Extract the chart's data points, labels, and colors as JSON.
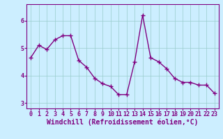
{
  "x": [
    0,
    1,
    2,
    3,
    4,
    5,
    6,
    7,
    8,
    9,
    10,
    11,
    12,
    13,
    14,
    15,
    16,
    17,
    18,
    19,
    20,
    21,
    22,
    23
  ],
  "y": [
    4.65,
    5.1,
    4.95,
    5.3,
    5.45,
    5.45,
    4.55,
    4.3,
    3.9,
    3.7,
    3.6,
    3.3,
    3.3,
    4.5,
    6.2,
    4.65,
    4.5,
    4.25,
    3.9,
    3.75,
    3.75,
    3.65,
    3.65,
    3.35
  ],
  "line_color": "#800080",
  "marker": "+",
  "marker_size": 4,
  "bg_color": "#cceeff",
  "grid_color": "#99cccc",
  "xlabel": "Windchill (Refroidissement éolien,°C)",
  "xlabel_fontsize": 7,
  "tick_fontsize": 6,
  "ylim": [
    2.8,
    6.6
  ],
  "yticks": [
    3,
    4,
    5,
    6
  ],
  "xticks": [
    0,
    1,
    2,
    3,
    4,
    5,
    6,
    7,
    8,
    9,
    10,
    11,
    12,
    13,
    14,
    15,
    16,
    17,
    18,
    19,
    20,
    21,
    22,
    23
  ],
  "xlim": [
    -0.5,
    23.5
  ]
}
